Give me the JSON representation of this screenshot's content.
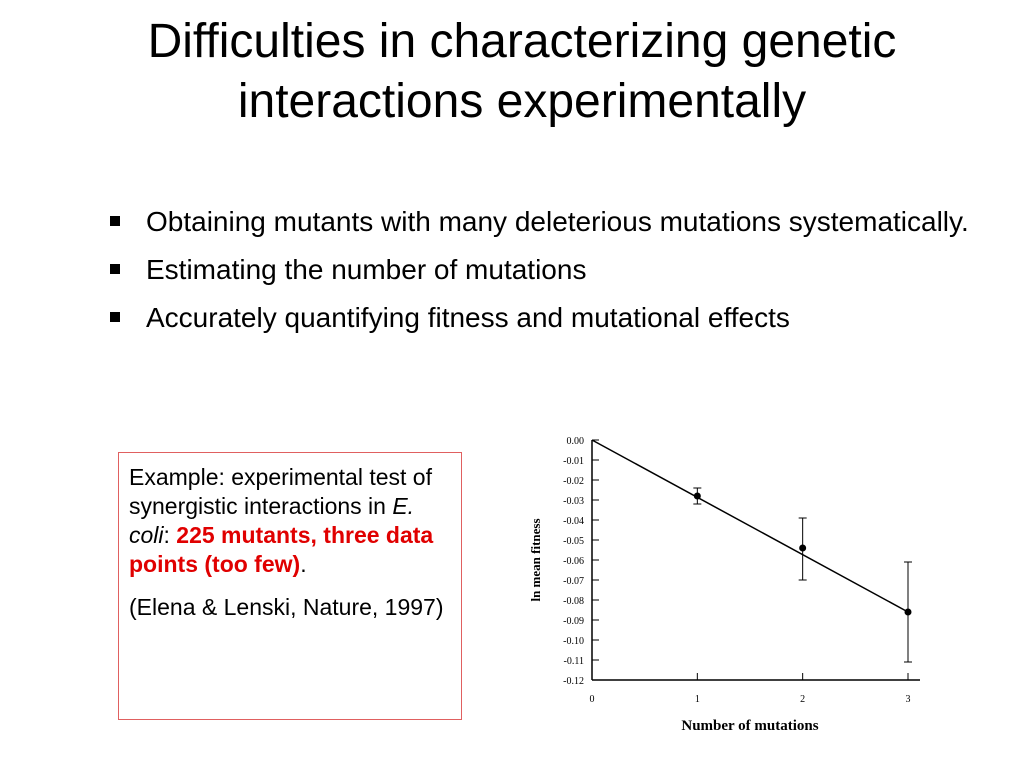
{
  "slide": {
    "title_line1": "Difficulties in characterizing genetic",
    "title_line2": "interactions experimentally",
    "bullets": [
      {
        "text": "Obtaining mutants with many deleterious mutations systematically."
      },
      {
        "text": "Estimating the number of mutations"
      },
      {
        "text": "Accurately quantifying fitness and mutational effects"
      }
    ],
    "example_box": {
      "line1": "Example: experimental test of synergistic interactions in ",
      "species": "E. coli",
      "colon": ":",
      "highlight": "225 mutants, three data points (too few)",
      "period": ".",
      "reference": "(Elena & Lenski, Nature, 1997)"
    },
    "colors": {
      "highlight": "#e00000",
      "box_border": "#e06060"
    }
  },
  "chart_data": {
    "type": "line",
    "xlabel": "Number of mutations",
    "ylabel": "ln mean fitness",
    "xlim": [
      0,
      3
    ],
    "ylim": [
      -0.12,
      0.0
    ],
    "x_ticks": [
      "0",
      "1",
      "2",
      "3"
    ],
    "y_ticks": [
      "0.00",
      "-0.01",
      "-0.02",
      "-0.03",
      "-0.04",
      "-0.05",
      "-0.06",
      "-0.07",
      "-0.08",
      "-0.09",
      "-0.10",
      "-0.11",
      "-0.12"
    ],
    "points": [
      {
        "x": 1,
        "y": -0.028,
        "err_low": -0.032,
        "err_high": -0.024
      },
      {
        "x": 2,
        "y": -0.054,
        "err_low": -0.07,
        "err_high": -0.039
      },
      {
        "x": 3,
        "y": -0.086,
        "err_low": -0.111,
        "err_high": -0.061
      }
    ],
    "fit_line": {
      "x": [
        0,
        3
      ],
      "y": [
        0.0,
        -0.086
      ]
    },
    "grid": false
  }
}
